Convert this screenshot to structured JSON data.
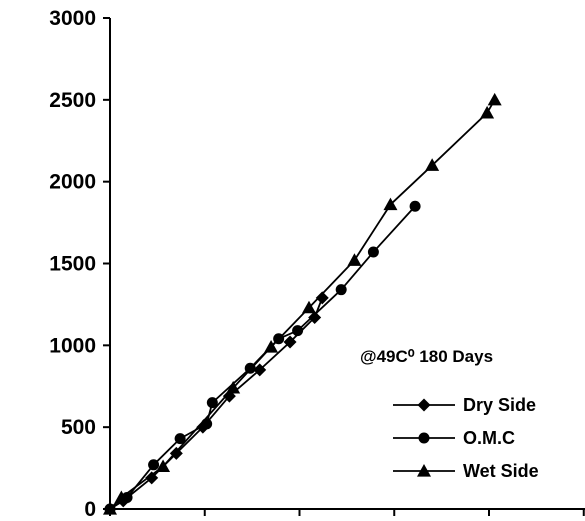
{
  "chart_data": {
    "type": "line",
    "title": "",
    "xlabel": "",
    "ylabel": "",
    "xlim": [
      0,
      2500
    ],
    "ylim": [
      0,
      3000
    ],
    "x_ticks": [
      0,
      500,
      1000,
      1500,
      2000,
      2500
    ],
    "y_ticks": [
      0,
      500,
      1000,
      1500,
      2000,
      2500,
      3000
    ],
    "y_tick_labels": [
      "0",
      "500",
      "1000",
      "1500",
      "2000",
      "2500",
      "3000"
    ],
    "x_tick_labels_visible": false,
    "grid": false,
    "legend_position": "bottom-right",
    "annotation": "@49C⁰ 180 Days",
    "line_color": "#000000",
    "series": [
      {
        "name": "Dry Side",
        "marker": "diamond",
        "points": [
          [
            0,
            0
          ],
          [
            70,
            50
          ],
          [
            220,
            190
          ],
          [
            350,
            340
          ],
          [
            490,
            500
          ],
          [
            630,
            690
          ],
          [
            790,
            850
          ],
          [
            950,
            1020
          ],
          [
            1080,
            1170
          ],
          [
            1120,
            1290
          ]
        ]
      },
      {
        "name": "O.M.C",
        "marker": "circle",
        "points": [
          [
            0,
            0
          ],
          [
            90,
            70
          ],
          [
            230,
            270
          ],
          [
            370,
            430
          ],
          [
            510,
            520
          ],
          [
            540,
            650
          ],
          [
            740,
            860
          ],
          [
            890,
            1040
          ],
          [
            990,
            1090
          ],
          [
            1220,
            1340
          ],
          [
            1390,
            1570
          ],
          [
            1610,
            1850
          ]
        ]
      },
      {
        "name": "Wet Side",
        "marker": "triangle",
        "points": [
          [
            0,
            0
          ],
          [
            60,
            70
          ],
          [
            280,
            260
          ],
          [
            650,
            740
          ],
          [
            850,
            990
          ],
          [
            1050,
            1230
          ],
          [
            1290,
            1520
          ],
          [
            1480,
            1860
          ],
          [
            1700,
            2100
          ],
          [
            1990,
            2420
          ],
          [
            2030,
            2500
          ]
        ]
      }
    ]
  }
}
